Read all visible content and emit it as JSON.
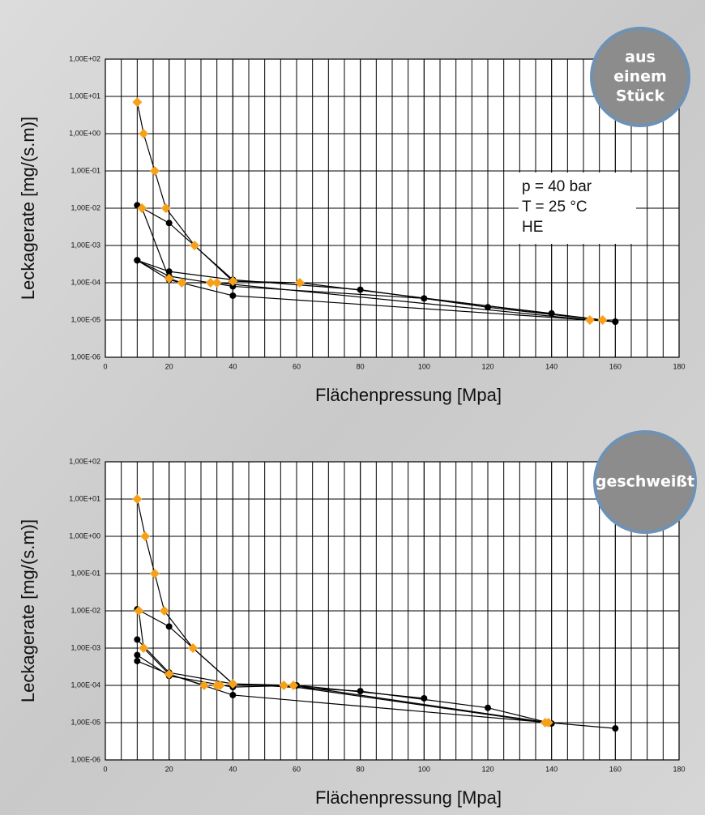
{
  "chart_data": [
    {
      "type": "line",
      "xlabel": "Flächenpressung [Mpa]",
      "ylabel": "Leckagerate [mg/(s.m)]",
      "log_y": true,
      "grid": true,
      "minor_grid_step": 5,
      "line_color": "#000000",
      "xlim": [
        0,
        180
      ],
      "xticks": [
        0,
        20,
        40,
        60,
        80,
        100,
        120,
        140,
        160,
        180
      ],
      "ylim": [
        1e-06,
        100
      ],
      "yticks": [
        {
          "value": 1e-06,
          "label": "1,00E-06"
        },
        {
          "value": 1e-05,
          "label": "1,00E-05"
        },
        {
          "value": 0.0001,
          "label": "1,00E-04"
        },
        {
          "value": 0.001,
          "label": "1,00E-03"
        },
        {
          "value": 0.01,
          "label": "1,00E-02"
        },
        {
          "value": 0.1,
          "label": "1,00E-01"
        },
        {
          "value": 1,
          "label": "1,00E+00"
        },
        {
          "value": 10,
          "label": "1,00E+01"
        },
        {
          "value": 100,
          "label": "1,00E+02"
        }
      ],
      "badge": [
        "aus",
        "einem",
        "Stück"
      ],
      "annotation": [
        "p = 40 bar",
        "T = 25 °C",
        "HE"
      ],
      "series": [
        {
          "color": "#000000",
          "marker": "circle",
          "x": [
            10,
            20,
            40
          ],
          "values": [
            0.012,
            0.004,
            0.00012
          ]
        },
        {
          "color": "#000000",
          "marker": "circle",
          "x": [
            10,
            20,
            40,
            80,
            120,
            160
          ],
          "values": [
            0.0004,
            0.0002,
            0.00012,
            6.5e-05,
            2.2e-05,
            9e-06
          ]
        },
        {
          "color": "#000000",
          "marker": "circle",
          "x": [
            10,
            20,
            40,
            100,
            140
          ],
          "values": [
            0.0004,
            0.00015,
            8e-05,
            3.8e-05,
            1.5e-05
          ]
        },
        {
          "color": "#000000",
          "marker": "circle",
          "x": [
            10,
            20,
            40,
            160
          ],
          "values": [
            0.0004,
            0.00012,
            4.5e-05,
            9e-06
          ]
        },
        {
          "color": "#f7a11a",
          "marker": "diamond",
          "x": [
            10,
            12,
            15.5,
            19,
            28,
            40,
            61,
            156
          ],
          "values": [
            7,
            1,
            0.1,
            0.01,
            0.001,
            0.00011,
            0.0001,
            1e-05
          ]
        },
        {
          "color": "#f7a11a",
          "marker": "diamond",
          "x": [
            11.5,
            20,
            24,
            33,
            35,
            152
          ],
          "values": [
            0.01,
            0.00013,
            0.0001,
            0.0001,
            0.0001,
            1e-05
          ]
        }
      ]
    },
    {
      "type": "line",
      "xlabel": "Flächenpressung [Mpa]",
      "ylabel": "Leckagerate [mg/(s.m)]",
      "log_y": true,
      "grid": true,
      "minor_grid_step": 5,
      "line_color": "#000000",
      "xlim": [
        0,
        180
      ],
      "xticks": [
        0,
        20,
        40,
        60,
        80,
        100,
        120,
        140,
        160,
        180
      ],
      "ylim": [
        1e-06,
        100
      ],
      "yticks": [
        {
          "value": 1e-06,
          "label": "1,00E-06"
        },
        {
          "value": 1e-05,
          "label": "1,00E-05"
        },
        {
          "value": 0.0001,
          "label": "1,00E-04"
        },
        {
          "value": 0.001,
          "label": "1,00E-03"
        },
        {
          "value": 0.01,
          "label": "1,00E-02"
        },
        {
          "value": 0.1,
          "label": "1,00E-01"
        },
        {
          "value": 1,
          "label": "1,00E+00"
        },
        {
          "value": 10,
          "label": "1,00E+01"
        },
        {
          "value": 100,
          "label": "1,00E+02"
        }
      ],
      "badge": [
        "geschweißt"
      ],
      "series": [
        {
          "color": "#000000",
          "marker": "circle",
          "x": [
            10,
            20,
            40
          ],
          "values": [
            0.011,
            0.0038,
            0.00011
          ]
        },
        {
          "color": "#000000",
          "marker": "circle",
          "x": [
            10,
            20,
            40,
            80,
            120,
            140
          ],
          "values": [
            0.0017,
            0.00022,
            0.00011,
            7e-05,
            2.5e-05,
            9.5e-06
          ]
        },
        {
          "color": "#000000",
          "marker": "circle",
          "x": [
            10,
            20,
            40,
            60,
            100
          ],
          "values": [
            0.00065,
            0.00018,
            9e-05,
            0.0001,
            4.5e-05
          ]
        },
        {
          "color": "#000000",
          "marker": "circle",
          "x": [
            10,
            20,
            40,
            160
          ],
          "values": [
            0.00045,
            0.0002,
            5.5e-05,
            7e-06
          ]
        },
        {
          "color": "#f7a11a",
          "marker": "diamond",
          "x": [
            10,
            12.5,
            15.5,
            18.5,
            27.5,
            40,
            59,
            139
          ],
          "values": [
            10,
            1,
            0.1,
            0.01,
            0.001,
            0.00011,
            0.0001,
            1e-05
          ]
        },
        {
          "color": "#f7a11a",
          "marker": "diamond",
          "x": [
            10.5,
            12,
            20,
            31,
            35,
            36,
            56,
            138
          ],
          "values": [
            0.01,
            0.001,
            0.0002,
            0.0001,
            0.0001,
            0.0001,
            0.0001,
            1e-05
          ]
        }
      ]
    }
  ]
}
